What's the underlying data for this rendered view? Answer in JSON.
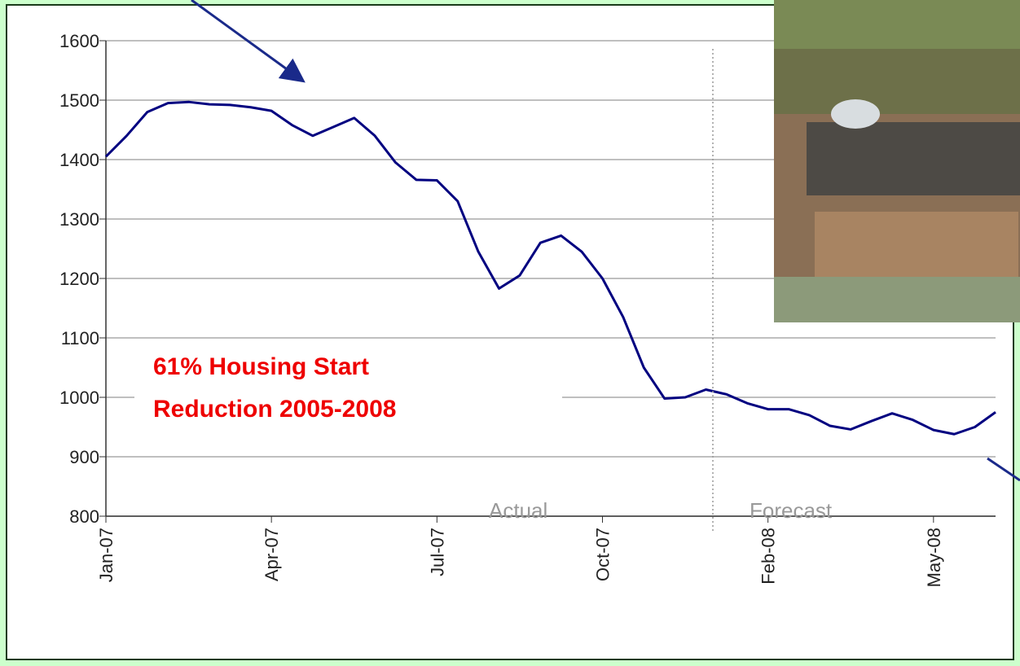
{
  "chart_data": {
    "type": "line",
    "categories": [
      "Jan-07",
      null,
      null,
      null,
      null,
      null,
      null,
      null,
      "Apr-07",
      null,
      null,
      null,
      null,
      null,
      null,
      null,
      "Jul-07",
      null,
      null,
      null,
      null,
      null,
      null,
      null,
      "Oct-07",
      null,
      null,
      null,
      null,
      null,
      null,
      null,
      "Feb-08",
      null,
      null,
      null,
      null,
      null,
      null,
      null,
      "May-08",
      null,
      null,
      null
    ],
    "series": [
      {
        "color": "#000080",
        "values": [
          1405,
          1440,
          1480,
          1495,
          1497,
          1493,
          1492,
          1488,
          1482,
          1458,
          1440,
          1455,
          1470,
          1440,
          1395,
          1366,
          1365,
          1330,
          1245,
          1183,
          1205,
          1260,
          1272,
          1245,
          1200,
          1135,
          1050,
          998,
          1000,
          1013,
          1005,
          990,
          980,
          980,
          970,
          952,
          946,
          960,
          973,
          962,
          945,
          938,
          950,
          975
        ]
      }
    ],
    "ylim": [
      800,
      1600
    ],
    "yticks": [
      800,
      900,
      1000,
      1100,
      1200,
      1300,
      1400,
      1500,
      1600
    ],
    "grid": true,
    "annotations": [
      "61% Housing Start\nReduction 2005-2008",
      "Actual",
      "Forecast"
    ]
  }
}
